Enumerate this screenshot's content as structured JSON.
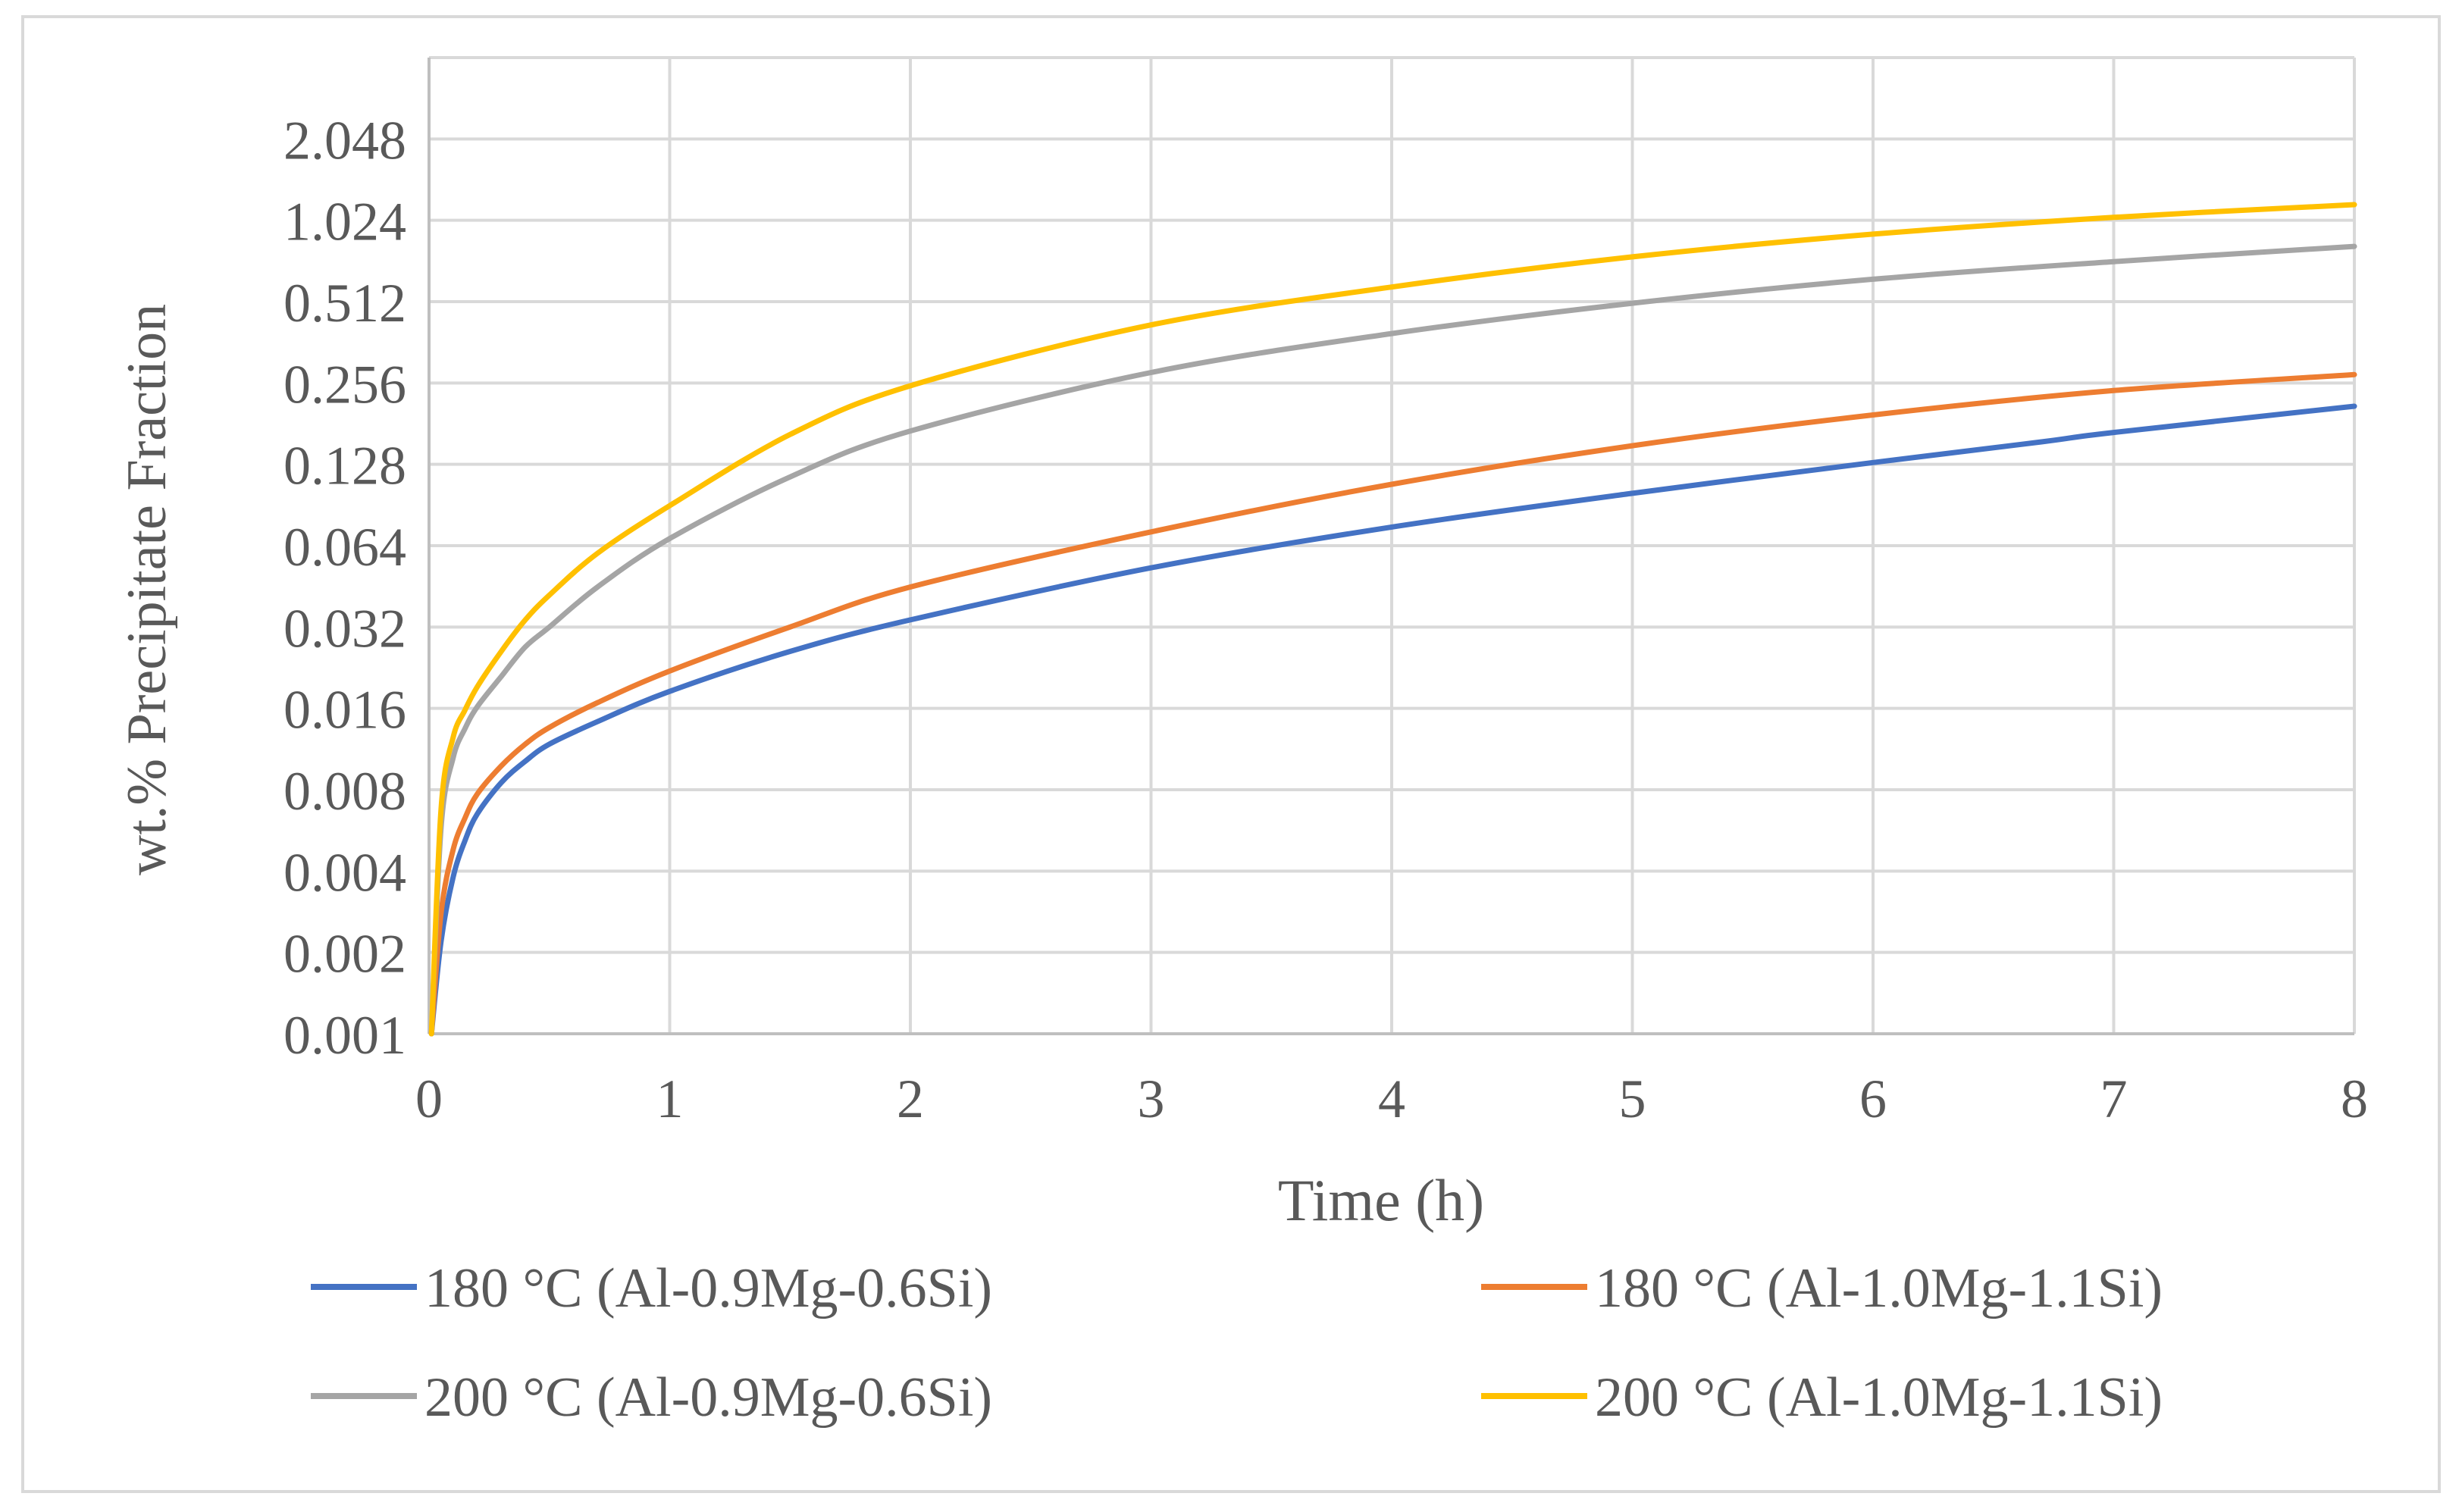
{
  "chart_data": {
    "type": "line",
    "title": "",
    "xlabel": "Time (h)",
    "ylabel": "wt.% Precipitate Fraction",
    "xlim": [
      0,
      8
    ],
    "ylim": [
      0.001,
      4.096
    ],
    "yscale": "log2",
    "grid": true,
    "legend_position": "bottom",
    "x_ticks": [
      "0",
      "1",
      "2",
      "3",
      "4",
      "5",
      "6",
      "7",
      "8"
    ],
    "x_tick_values": [
      0,
      1,
      2,
      3,
      4,
      5,
      6,
      7,
      8
    ],
    "y_ticks": [
      "0.001",
      "0.002",
      "0.004",
      "0.008",
      "0.016",
      "0.032",
      "0.064",
      "0.128",
      "0.256",
      "0.512",
      "1.024",
      "2.048"
    ],
    "y_tick_values": [
      0.001,
      0.002,
      0.004,
      0.008,
      0.016,
      0.032,
      0.064,
      0.128,
      0.256,
      0.512,
      1.024,
      2.048
    ],
    "series": [
      {
        "name": "180 °C (Al-0.9Mg-0.6Si)",
        "color": "#4472C4",
        "x": [
          0.01,
          0.05,
          0.1,
          0.15,
          0.2,
          0.3,
          0.4,
          0.5,
          0.7,
          1.0,
          1.5,
          2.0,
          3.0,
          4.0,
          5.0,
          6.0,
          6.7,
          7.0,
          8.0
        ],
        "y": [
          0.001,
          0.0022,
          0.0038,
          0.0052,
          0.0065,
          0.0085,
          0.0102,
          0.0118,
          0.0143,
          0.0185,
          0.026,
          0.034,
          0.053,
          0.075,
          0.1,
          0.13,
          0.155,
          0.168,
          0.21
        ]
      },
      {
        "name": "180 °C (Al-1.0Mg-1.1Si)",
        "color": "#ED7D31",
        "x": [
          0.01,
          0.05,
          0.1,
          0.15,
          0.2,
          0.3,
          0.4,
          0.5,
          0.7,
          1.0,
          1.5,
          2.0,
          3.0,
          4.0,
          5.0,
          6.0,
          7.0,
          8.0
        ],
        "y": [
          0.001,
          0.0028,
          0.0048,
          0.0063,
          0.0077,
          0.0098,
          0.0118,
          0.0136,
          0.0168,
          0.022,
          0.032,
          0.045,
          0.072,
          0.108,
          0.15,
          0.195,
          0.24,
          0.275
        ]
      },
      {
        "name": "200 °C (Al-0.9Mg-0.6Si)",
        "color": "#A5A5A5",
        "x": [
          0.01,
          0.05,
          0.1,
          0.15,
          0.2,
          0.3,
          0.4,
          0.5,
          0.7,
          1.0,
          1.5,
          2.0,
          3.0,
          4.0,
          5.0,
          6.0,
          7.0,
          8.0
        ],
        "y": [
          0.001,
          0.0058,
          0.0105,
          0.0135,
          0.0162,
          0.021,
          0.027,
          0.032,
          0.045,
          0.068,
          0.115,
          0.17,
          0.28,
          0.39,
          0.505,
          0.62,
          0.72,
          0.82
        ]
      },
      {
        "name": "200 °C (Al-1.0Mg-1.1Si)",
        "color": "#FFC000",
        "x": [
          0.01,
          0.05,
          0.1,
          0.15,
          0.2,
          0.3,
          0.4,
          0.5,
          0.7,
          1.0,
          1.5,
          2.0,
          3.0,
          4.0,
          5.0,
          6.0,
          7.0,
          8.0
        ],
        "y": [
          0.001,
          0.0068,
          0.0125,
          0.0158,
          0.0192,
          0.026,
          0.034,
          0.042,
          0.06,
          0.09,
          0.165,
          0.25,
          0.42,
          0.58,
          0.75,
          0.91,
          1.05,
          1.17
        ]
      }
    ]
  }
}
